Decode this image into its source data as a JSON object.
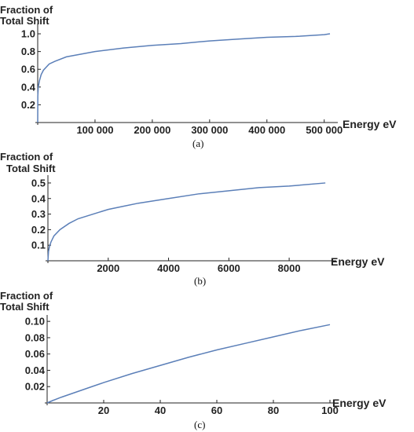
{
  "chart_data": [
    {
      "type": "line",
      "panel": "a",
      "caption": "(a)",
      "ylabel_line1": "Fraction of",
      "ylabel_line2": "Total Shift",
      "xlabel": "Energy eV",
      "xlim": [
        0,
        510000
      ],
      "ylim": [
        0,
        1.08
      ],
      "xticks": [
        100000,
        200000,
        300000,
        400000,
        500000
      ],
      "xtick_labels": [
        "100 000",
        "200 000",
        "300 000",
        "400 000",
        "500 000"
      ],
      "yticks": [
        0.2,
        0.4,
        0.6,
        0.8,
        1.0
      ],
      "ytick_labels": [
        "0.2",
        "0.4",
        "0.6",
        "0.8",
        "1.0"
      ],
      "series": [
        {
          "color": "#5b7fb8",
          "x": [
            0,
            200,
            1000,
            3000,
            6000,
            10000,
            20000,
            30000,
            50000,
            75000,
            100000,
            150000,
            200000,
            250000,
            300000,
            350000,
            400000,
            450000,
            500000,
            510000
          ],
          "y": [
            0,
            0.3,
            0.4,
            0.47,
            0.54,
            0.59,
            0.66,
            0.69,
            0.74,
            0.77,
            0.8,
            0.84,
            0.87,
            0.89,
            0.92,
            0.94,
            0.96,
            0.97,
            0.99,
            1.0
          ]
        }
      ]
    },
    {
      "type": "line",
      "panel": "b",
      "caption": "(b)",
      "ylabel_line1": "Fraction of",
      "ylabel_line2": "Total Shift",
      "xlabel": "Energy eV",
      "xlim": [
        0,
        9300
      ],
      "ylim": [
        0,
        0.53
      ],
      "xticks": [
        2000,
        4000,
        6000,
        8000
      ],
      "xtick_labels": [
        "2000",
        "4000",
        "6000",
        "8000"
      ],
      "yticks": [
        0.1,
        0.2,
        0.3,
        0.4,
        0.5
      ],
      "ytick_labels": [
        "0.1",
        "0.2",
        "0.3",
        "0.4",
        "0.5"
      ],
      "series": [
        {
          "color": "#5b7fb8",
          "x": [
            0,
            20,
            50,
            100,
            200,
            400,
            700,
            1000,
            1500,
            2000,
            2500,
            3000,
            4000,
            5000,
            6000,
            7000,
            8000,
            9200
          ],
          "y": [
            0,
            0.06,
            0.09,
            0.12,
            0.16,
            0.2,
            0.24,
            0.27,
            0.3,
            0.33,
            0.35,
            0.37,
            0.4,
            0.43,
            0.45,
            0.47,
            0.48,
            0.5
          ]
        }
      ]
    },
    {
      "type": "line",
      "panel": "c",
      "caption": "(c)",
      "ylabel_line1": "Fraction of",
      "ylabel_line2": "Total Shift",
      "xlabel": "Energy eV",
      "xlim": [
        0,
        100
      ],
      "ylim": [
        0,
        0.104
      ],
      "xticks": [
        20,
        40,
        60,
        80,
        100
      ],
      "xtick_labels": [
        "20",
        "40",
        "60",
        "80",
        "100"
      ],
      "yticks": [
        0.02,
        0.04,
        0.06,
        0.08,
        0.1
      ],
      "ytick_labels": [
        "0.02",
        "0.04",
        "0.06",
        "0.08",
        "0.10"
      ],
      "series": [
        {
          "color": "#5b7fb8",
          "x": [
            0,
            2,
            5,
            10,
            15,
            20,
            30,
            40,
            50,
            60,
            70,
            80,
            90,
            100
          ],
          "y": [
            0,
            0.003,
            0.007,
            0.013,
            0.019,
            0.025,
            0.036,
            0.046,
            0.056,
            0.065,
            0.073,
            0.081,
            0.089,
            0.096
          ]
        }
      ]
    }
  ]
}
